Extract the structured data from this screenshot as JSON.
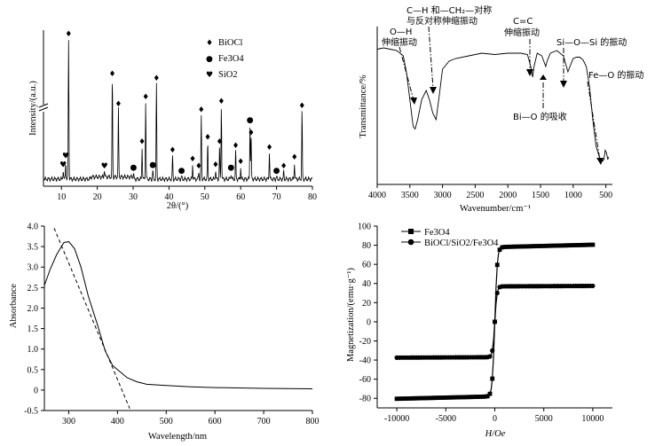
{
  "chart_data": [
    {
      "type": "line",
      "panel": "xrd",
      "xlabel": "2θ/(°)",
      "ylabel": "Intensity/(a.u.)",
      "xlim": [
        5,
        80
      ],
      "xticks": [
        10,
        20,
        30,
        40,
        50,
        60,
        70,
        80
      ],
      "legend": [
        {
          "symbol": "♦",
          "label": "BiOCl"
        },
        {
          "symbol": "●",
          "label": "Fe3O4"
        },
        {
          "symbol": "♥",
          "label": "SiO2"
        }
      ],
      "peaks": [
        {
          "x": 10.5,
          "h": 0.06,
          "m": "♥"
        },
        {
          "x": 11.2,
          "h": 0.12,
          "m": "♥"
        },
        {
          "x": 12.0,
          "h": 0.97,
          "m": "♦"
        },
        {
          "x": 22.0,
          "h": 0.05,
          "m": "♥"
        },
        {
          "x": 24.2,
          "h": 0.69,
          "m": "♦"
        },
        {
          "x": 25.9,
          "h": 0.48,
          "m": "♦"
        },
        {
          "x": 30.1,
          "h": 0.04,
          "m": "●"
        },
        {
          "x": 32.5,
          "h": 0.22,
          "m": "♦"
        },
        {
          "x": 33.5,
          "h": 0.53,
          "m": "♦"
        },
        {
          "x": 35.5,
          "h": 0.06,
          "m": "●"
        },
        {
          "x": 36.5,
          "h": 0.66,
          "m": "♦"
        },
        {
          "x": 41.0,
          "h": 0.16,
          "m": "♦"
        },
        {
          "x": 43.5,
          "h": 0.02,
          "m": "●"
        },
        {
          "x": 46.6,
          "h": 0.1,
          "m": "♦"
        },
        {
          "x": 48.3,
          "h": 0.05,
          "m": "♦"
        },
        {
          "x": 49.0,
          "h": 0.44,
          "m": "♦"
        },
        {
          "x": 50.8,
          "h": 0.25,
          "m": "♦"
        },
        {
          "x": 53.0,
          "h": 0.06,
          "m": "♦"
        },
        {
          "x": 54.1,
          "h": 0.22,
          "m": "♦"
        },
        {
          "x": 54.6,
          "h": 0.5,
          "m": "♦"
        },
        {
          "x": 57.3,
          "h": 0.04,
          "m": "●"
        },
        {
          "x": 58.6,
          "h": 0.19,
          "m": "♦"
        },
        {
          "x": 60.0,
          "h": 0.08,
          "m": "♦"
        },
        {
          "x": 62.6,
          "h": 0.37,
          "m": "●"
        },
        {
          "x": 62.9,
          "h": 0.28,
          "m": "♦"
        },
        {
          "x": 68.0,
          "h": 0.18,
          "m": "♦"
        },
        {
          "x": 70.0,
          "h": 0.02,
          "m": "●"
        },
        {
          "x": 72.0,
          "h": 0.05,
          "m": "♦"
        },
        {
          "x": 75.0,
          "h": 0.11,
          "m": "♦"
        },
        {
          "x": 77.1,
          "h": 0.47,
          "m": "♦"
        }
      ]
    },
    {
      "type": "line",
      "panel": "ftir",
      "xlabel": "Wavenumber/cm⁻¹",
      "ylabel": "Transmittance/%",
      "xlim": [
        4000,
        400
      ],
      "xticks": [
        4000,
        3500,
        3000,
        2500,
        2000,
        1500,
        1000,
        500
      ],
      "points": [
        [
          4000,
          0.93
        ],
        [
          3900,
          0.94
        ],
        [
          3800,
          0.93
        ],
        [
          3700,
          0.92
        ],
        [
          3600,
          0.88
        ],
        [
          3550,
          0.75
        ],
        [
          3500,
          0.55
        ],
        [
          3450,
          0.35
        ],
        [
          3420,
          0.33
        ],
        [
          3380,
          0.4
        ],
        [
          3320,
          0.55
        ],
        [
          3250,
          0.62
        ],
        [
          3200,
          0.55
        ],
        [
          3150,
          0.45
        ],
        [
          3100,
          0.4
        ],
        [
          3050,
          0.58
        ],
        [
          3000,
          0.78
        ],
        [
          2900,
          0.84
        ],
        [
          2800,
          0.86
        ],
        [
          2600,
          0.88
        ],
        [
          2400,
          0.9
        ],
        [
          2200,
          0.89
        ],
        [
          2000,
          0.9
        ],
        [
          1800,
          0.9
        ],
        [
          1700,
          0.89
        ],
        [
          1650,
          0.8
        ],
        [
          1620,
          0.72
        ],
        [
          1600,
          0.8
        ],
        [
          1550,
          0.9
        ],
        [
          1480,
          0.88
        ],
        [
          1420,
          0.8
        ],
        [
          1400,
          0.84
        ],
        [
          1350,
          0.9
        ],
        [
          1250,
          0.92
        ],
        [
          1150,
          0.88
        ],
        [
          1080,
          0.76
        ],
        [
          1050,
          0.8
        ],
        [
          1000,
          0.86
        ],
        [
          950,
          0.87
        ],
        [
          900,
          0.87
        ],
        [
          850,
          0.85
        ],
        [
          800,
          0.8
        ],
        [
          750,
          0.65
        ],
        [
          700,
          0.4
        ],
        [
          650,
          0.2
        ],
        [
          600,
          0.12
        ],
        [
          570,
          0.08
        ],
        [
          530,
          0.1
        ],
        [
          510,
          0.17
        ],
        [
          490,
          0.15
        ],
        [
          470,
          0.1
        ],
        [
          460,
          0.12
        ]
      ],
      "annotations": {
        "oh": [
          "O—H",
          "伸缩振动"
        ],
        "ch": [
          "C—H 和—CH₂—对称",
          "与反对称伸缩振动"
        ],
        "cc": [
          "C=C",
          "伸缩振动"
        ],
        "sios": "Si—O—Si 的振动",
        "feo": "Fe—O 的振动",
        "bio": "Bi—O 的吸收"
      }
    },
    {
      "type": "line",
      "panel": "uvvis",
      "xlabel": "Wavelength/nm",
      "ylabel": "Absorbance",
      "xlim": [
        250,
        800
      ],
      "ylim": [
        -0.5,
        4.0
      ],
      "xticks": [
        300,
        400,
        500,
        600,
        700,
        800
      ],
      "yticks": [
        -0.5,
        0,
        0.5,
        1.0,
        1.5,
        2.0,
        2.5,
        3.0,
        3.5,
        4.0
      ],
      "points": [
        [
          250,
          2.55
        ],
        [
          262,
          2.95
        ],
        [
          275,
          3.3
        ],
        [
          290,
          3.6
        ],
        [
          300,
          3.62
        ],
        [
          312,
          3.45
        ],
        [
          325,
          3.0
        ],
        [
          340,
          2.3
        ],
        [
          360,
          1.55
        ],
        [
          375,
          0.95
        ],
        [
          390,
          0.6
        ],
        [
          405,
          0.45
        ],
        [
          420,
          0.3
        ],
        [
          440,
          0.2
        ],
        [
          460,
          0.14
        ],
        [
          500,
          0.11
        ],
        [
          550,
          0.08
        ],
        [
          600,
          0.06
        ],
        [
          700,
          0.04
        ],
        [
          800,
          0.03
        ]
      ],
      "tangent": [
        [
          270,
          3.95
        ],
        [
          425,
          -0.45
        ]
      ]
    },
    {
      "type": "line",
      "panel": "vsm",
      "xlabel": "H/Oe",
      "ylabel": "Magnetization/(emu·g⁻¹)",
      "xlim": [
        -12000,
        12000
      ],
      "ylim": [
        -90,
        100
      ],
      "xticks": [
        -10000,
        -5000,
        0,
        5000,
        10000
      ],
      "yticks": [
        -80,
        -60,
        -40,
        -20,
        0,
        20,
        40,
        60,
        80,
        100
      ],
      "series": [
        {
          "name": "Fe3O4",
          "marker": "square",
          "ms": 78,
          "shape": 250,
          "cap": 2.5,
          "slope": 0.00025
        },
        {
          "name": "BiOCl/SiO2/Fe3O4",
          "marker": "circle",
          "ms": 37,
          "shape": 220,
          "cap": 1.5,
          "slope": 5e-05
        }
      ]
    }
  ]
}
